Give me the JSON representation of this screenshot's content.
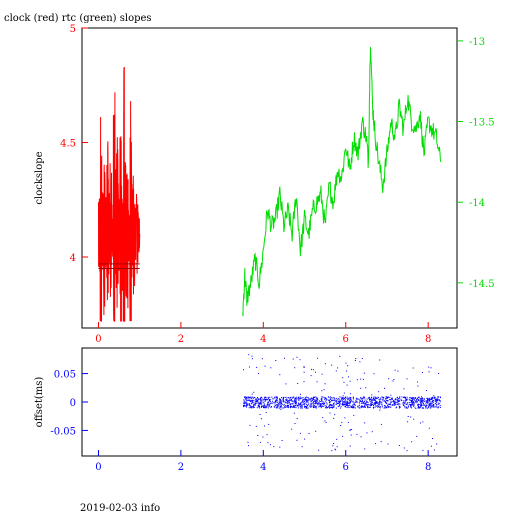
{
  "title": "clock (red) rtc (green) slopes",
  "footer": "2019-02-03 info",
  "colors": {
    "clock": "#ff0000",
    "rtc": "#00dd00",
    "offset": "#0000ff",
    "frame": "#000000"
  },
  "chart_data": [
    {
      "type": "line",
      "title": "clock (red) rtc (green) slopes",
      "xlabel": "",
      "ylabel": "clockslope",
      "xlim": [
        -0.4,
        8.7
      ],
      "ylim": [
        3.69,
        5.0
      ],
      "xticks": [
        0,
        2,
        4,
        6,
        8
      ],
      "yticks": [
        4,
        4.5,
        5
      ],
      "y2lim": [
        -14.78,
        -12.92
      ],
      "y2ticks": [
        -13,
        -13.5,
        -14,
        -14.5
      ],
      "grid": false,
      "series": [
        {
          "axis": "left",
          "note": "clock slope, dense oscillating trace",
          "x": [
            0.0,
            0.04,
            0.08,
            0.12,
            0.16,
            0.2,
            0.24,
            0.28,
            0.32,
            0.36,
            0.4,
            0.44,
            0.48,
            0.52,
            0.56,
            0.6,
            0.64,
            0.68,
            0.72,
            0.76,
            0.8,
            0.84,
            0.88,
            0.92,
            0.96,
            1.0
          ],
          "y": [
            3.9,
            4.7,
            3.85,
            4.55,
            3.92,
            4.62,
            3.85,
            4.45,
            3.95,
            4.82,
            3.78,
            4.6,
            3.9,
            4.72,
            3.82,
            4.92,
            3.75,
            4.5,
            3.95,
            4.78,
            3.85,
            4.4,
            3.95,
            4.3,
            3.98,
            4.1
          ]
        },
        {
          "axis": "right",
          "note": "rtc slope",
          "x": [
            3.5,
            3.55,
            3.6,
            3.7,
            3.8,
            3.9,
            4.0,
            4.1,
            4.2,
            4.3,
            4.4,
            4.5,
            4.6,
            4.7,
            4.8,
            4.9,
            5.0,
            5.1,
            5.2,
            5.3,
            5.4,
            5.5,
            5.6,
            5.7,
            5.8,
            5.9,
            6.0,
            6.1,
            6.2,
            6.3,
            6.4,
            6.5,
            6.55,
            6.6,
            6.65,
            6.7,
            6.8,
            6.9,
            7.0,
            7.1,
            7.2,
            7.3,
            7.4,
            7.5,
            7.6,
            7.7,
            7.8,
            7.9,
            8.0,
            8.1,
            8.2,
            8.3
          ],
          "y": [
            -14.7,
            -14.45,
            -14.6,
            -14.5,
            -14.35,
            -14.5,
            -14.3,
            -14.05,
            -14.15,
            -14.1,
            -13.95,
            -14.15,
            -14.05,
            -14.2,
            -13.95,
            -14.3,
            -14.1,
            -14.2,
            -14.05,
            -14.0,
            -13.95,
            -14.15,
            -13.9,
            -14.0,
            -13.8,
            -13.85,
            -13.65,
            -13.8,
            -13.6,
            -13.7,
            -13.5,
            -13.6,
            -13.75,
            -12.98,
            -13.4,
            -13.55,
            -13.75,
            -13.9,
            -13.7,
            -13.5,
            -13.6,
            -13.4,
            -13.55,
            -13.35,
            -13.5,
            -13.55,
            -13.45,
            -13.7,
            -13.5,
            -13.55,
            -13.6,
            -13.75
          ]
        }
      ]
    },
    {
      "type": "scatter",
      "xlabel": "",
      "ylabel": "offset(ms)",
      "xlim": [
        -0.4,
        8.7
      ],
      "ylim": [
        -0.095,
        0.095
      ],
      "xticks": [
        0,
        2,
        4,
        6,
        8
      ],
      "yticks": [
        0.05,
        0,
        -0.05
      ],
      "grid": false,
      "series": [
        {
          "note": "offset samples, dense band around 0 with sparse outliers",
          "x_range": [
            3.5,
            8.3
          ],
          "center": 0,
          "band": 0.01,
          "outlier_extent": 0.085
        }
      ]
    }
  ]
}
